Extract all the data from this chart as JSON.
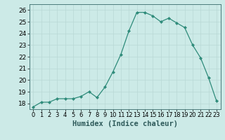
{
  "x": [
    0,
    1,
    2,
    3,
    4,
    5,
    6,
    7,
    8,
    9,
    10,
    11,
    12,
    13,
    14,
    15,
    16,
    17,
    18,
    19,
    20,
    21,
    22,
    23
  ],
  "y": [
    17.7,
    18.1,
    18.1,
    18.4,
    18.4,
    18.4,
    18.6,
    19.0,
    18.5,
    19.4,
    20.7,
    22.2,
    24.2,
    25.8,
    25.8,
    25.5,
    25.0,
    25.3,
    24.9,
    24.5,
    23.0,
    21.9,
    20.2,
    18.2
  ],
  "line_color": "#2e8b7a",
  "marker_color": "#2e8b7a",
  "bg_color": "#cceae7",
  "grid_color": "#b8d8d5",
  "xlabel": "Humidex (Indice chaleur)",
  "ylim": [
    17.5,
    26.5
  ],
  "xlim": [
    -0.5,
    23.5
  ],
  "yticks": [
    18,
    19,
    20,
    21,
    22,
    23,
    24,
    25,
    26
  ],
  "xtick_labels": [
    "0",
    "1",
    "2",
    "3",
    "4",
    "5",
    "6",
    "7",
    "8",
    "9",
    "10",
    "11",
    "12",
    "13",
    "14",
    "15",
    "16",
    "17",
    "18",
    "19",
    "20",
    "21",
    "22",
    "23"
  ],
  "label_fontsize": 7.5,
  "tick_fontsize": 6.5
}
